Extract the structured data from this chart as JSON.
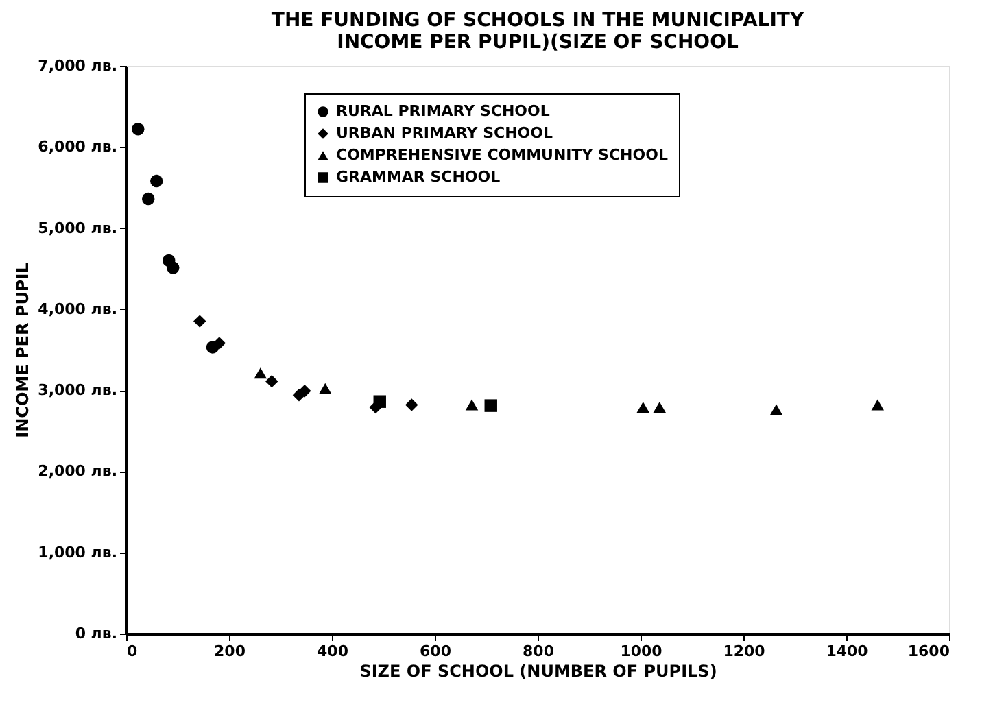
{
  "chart_data": {
    "type": "scatter",
    "title": [
      "THE FUNDING OF SCHOOLS IN THE MUNICIPALITY",
      "INCOME PER PUPIL)(SIZE OF SCHOOL"
    ],
    "xlabel": "SIZE OF SCHOOL (NUMBER OF PUPILS)",
    "ylabel": "INCOME PER PUPIL",
    "xlim": [
      0,
      1600
    ],
    "xticks": [
      0,
      200,
      400,
      600,
      800,
      1000,
      1200,
      1400,
      1600
    ],
    "ylim": [
      0,
      7000
    ],
    "yticks": [
      {
        "value": 0,
        "label": "0 лв."
      },
      {
        "value": 1000,
        "label": "1,000 лв."
      },
      {
        "value": 2000,
        "label": "2,000 лв."
      },
      {
        "value": 3000,
        "label": "3,000 лв."
      },
      {
        "value": 4000,
        "label": "4,000 лв."
      },
      {
        "value": 5000,
        "label": "5,000 лв."
      },
      {
        "value": 6000,
        "label": "6,000 лв."
      },
      {
        "value": 7000,
        "label": "7,000 лв."
      }
    ],
    "grid": false,
    "legend": "top",
    "series": [
      {
        "name": "RURAL PRIMARY SCHOOL",
        "color": "#000000",
        "marker": "circle",
        "x": [
          23,
          43,
          59,
          83,
          91,
          168
        ],
        "values": [
          6220,
          5360,
          5580,
          4600,
          4510,
          3530
        ]
      },
      {
        "name": "URBAN PRIMARY SCHOOL",
        "color": "#000000",
        "marker": "diamond",
        "x": [
          143,
          181,
          283,
          336,
          347,
          485,
          555
        ],
        "values": [
          3850,
          3580,
          3110,
          2940,
          2990,
          2790,
          2820
        ]
      },
      {
        "name": "COMPREHENSIVE COMMUNITY SCHOOL",
        "color": "#000000",
        "marker": "triangle",
        "x": [
          261,
          387,
          672,
          1005,
          1037,
          1264,
          1461
        ],
        "values": [
          3210,
          3020,
          2820,
          2790,
          2790,
          2760,
          2820
        ]
      },
      {
        "name": "GRAMMAR SCHOOL",
        "color": "#000000",
        "marker": "square",
        "x": [
          493,
          709
        ],
        "values": [
          2860,
          2810
        ]
      }
    ]
  }
}
